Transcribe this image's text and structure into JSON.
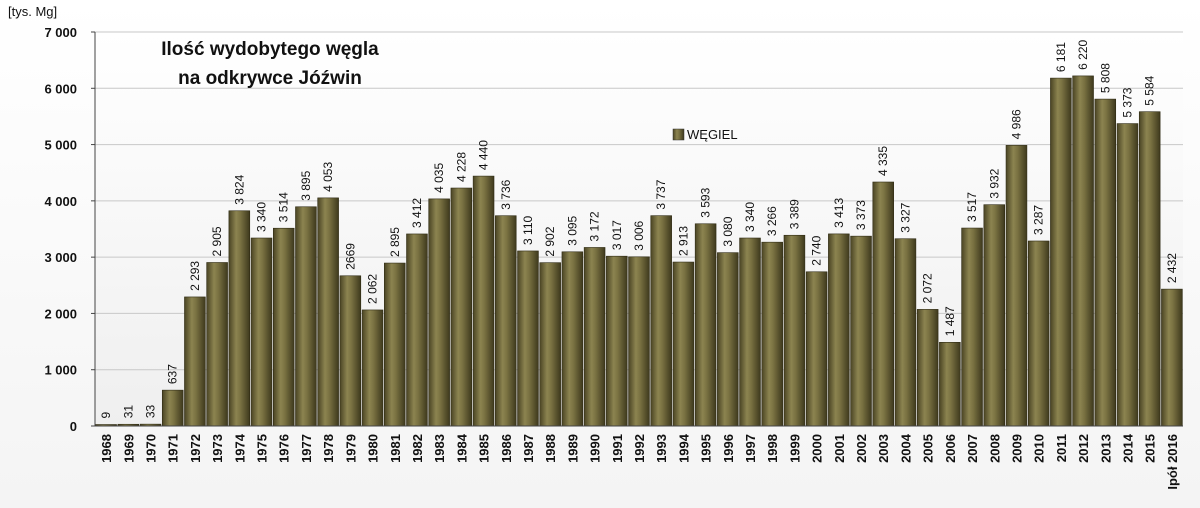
{
  "chart_data": {
    "type": "bar",
    "title_lines": [
      "Ilość wydobytego węgla",
      "na odkrywce Jóźwin"
    ],
    "unit_label": "[tys. Mg]",
    "ylim": [
      0,
      7000
    ],
    "y_ticks": [
      {
        "value": 0,
        "label": "0"
      },
      {
        "value": 1000,
        "label": "1 000"
      },
      {
        "value": 2000,
        "label": "2 000"
      },
      {
        "value": 3000,
        "label": "3 000"
      },
      {
        "value": 4000,
        "label": "4 000"
      },
      {
        "value": 5000,
        "label": "5 000"
      },
      {
        "value": 6000,
        "label": "6 000"
      },
      {
        "value": 7000,
        "label": "7 000"
      }
    ],
    "grid": true,
    "legend": {
      "placement": "top-center",
      "entries": [
        "WĘGIEL"
      ]
    },
    "bar_color": "#6b6438",
    "categories": [
      "1968",
      "1969",
      "1970",
      "1971",
      "1972",
      "1973",
      "1974",
      "1975",
      "1976",
      "1977",
      "1978",
      "1979",
      "1980",
      "1981",
      "1982",
      "1983",
      "1984",
      "1985",
      "1986",
      "1987",
      "1988",
      "1989",
      "1990",
      "1991",
      "1992",
      "1993",
      "1994",
      "1995",
      "1996",
      "1997",
      "1998",
      "1999",
      "2000",
      "2001",
      "2002",
      "2003",
      "2004",
      "2005",
      "2006",
      "2007",
      "2008",
      "2009",
      "2010",
      "2011",
      "2012",
      "2013",
      "2014",
      "2015",
      "Ipół 2016"
    ],
    "series": [
      {
        "name": "WĘGIEL",
        "values": [
          9,
          31,
          33,
          637,
          2293,
          2905,
          3824,
          3340,
          3514,
          3895,
          4053,
          2669,
          2062,
          2895,
          3412,
          4035,
          4228,
          4440,
          3736,
          3110,
          2902,
          3095,
          3172,
          3017,
          3006,
          3737,
          2913,
          3593,
          3080,
          3340,
          3266,
          3389,
          2740,
          3413,
          3373,
          4335,
          3327,
          2072,
          1487,
          3517,
          3932,
          4986,
          3287,
          6181,
          6220,
          5808,
          5373,
          5584,
          2432
        ],
        "labels": [
          "9",
          "31",
          "33",
          "637",
          "2 293",
          "2 905",
          "3 824",
          "3 340",
          "3 514",
          "3 895",
          "4 053",
          "2669",
          "2 062",
          "2 895",
          "3 412",
          "4 035",
          "4 228",
          "4 440",
          "3 736",
          "3 110",
          "2 902",
          "3 095",
          "3 172",
          "3 017",
          "3 006",
          "3 737",
          "2 913",
          "3 593",
          "3 080",
          "3 340",
          "3 266",
          "3 389",
          "2 740",
          "3 413",
          "3 373",
          "4 335",
          "3 327",
          "2 072",
          "1 487",
          "3 517",
          "3 932",
          "4 986",
          "3 287",
          "6 181",
          "6 220",
          "5 808",
          "5 373",
          "5 584",
          "2 432"
        ]
      }
    ]
  }
}
